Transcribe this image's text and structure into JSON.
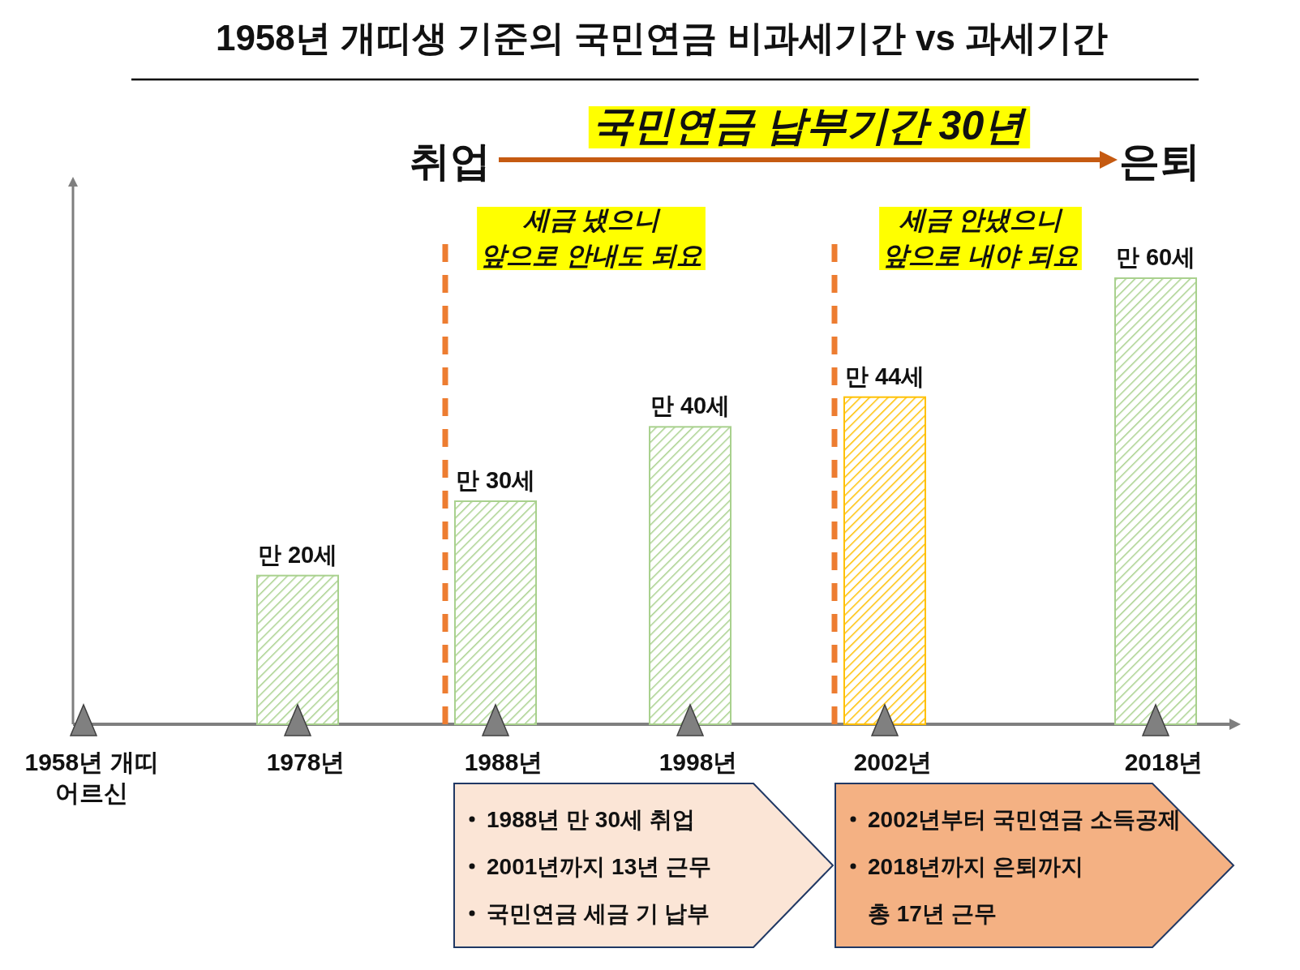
{
  "chart_data": {
    "type": "bar",
    "title": "1958년 개띠생 기준의 국민연금 비과세기간 vs 과세기간",
    "categories": [
      "1958년 개띠\n어르신",
      "1978년",
      "1988년",
      "1998년",
      "2002년",
      "2018년"
    ],
    "values": [
      null,
      20,
      30,
      40,
      44,
      60
    ],
    "value_labels": [
      null,
      "만 20세",
      "만 30세",
      "만 40세",
      "만 44세",
      "만 60세"
    ],
    "colors": [
      null,
      "#a9d18e",
      "#a9d18e",
      "#a9d18e",
      "#ffc000",
      "#a9d18e"
    ],
    "tick_labels": "x",
    "ref_lines": [
      {
        "axis": "x",
        "value": "1988년",
        "label": "세금 냈으니\n앞으로 안내도 되요",
        "color": "#ed7d31",
        "line_style": "dashed"
      },
      {
        "axis": "x",
        "value": "2002년",
        "label": "세금 안냈으니\n앞으로 내야 되요",
        "color": "#ed7d31",
        "line_style": "dashed"
      }
    ],
    "annotations": [
      "국민연금 납부기간 30년",
      "취업",
      "은퇴",
      "1988년 만 30세 취업",
      "2001년까지 13년 근무",
      "국민연금 세금 기 납부",
      "2002년부터 국민연금 소득공제",
      "2018년까지 은퇴까지\n총 17년 근무"
    ]
  }
}
